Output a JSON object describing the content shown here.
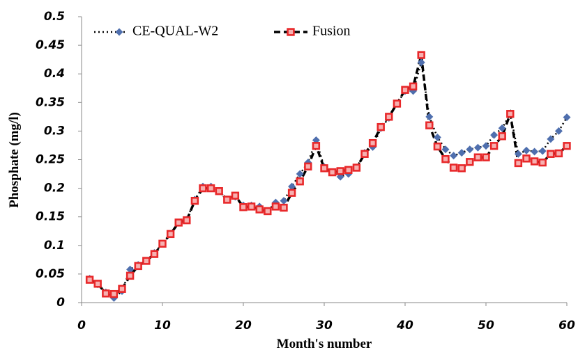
{
  "chart_data": {
    "type": "line",
    "xlabel": "Month's number",
    "ylabel": "Phosphate (mg/l)",
    "x": [
      1,
      2,
      3,
      4,
      5,
      6,
      7,
      8,
      9,
      10,
      11,
      12,
      13,
      14,
      15,
      16,
      17,
      18,
      19,
      20,
      21,
      22,
      23,
      24,
      25,
      26,
      27,
      28,
      29,
      30,
      31,
      32,
      33,
      34,
      35,
      36,
      37,
      38,
      39,
      40,
      41,
      42,
      43,
      44,
      45,
      46,
      47,
      48,
      49,
      50,
      51,
      52,
      53,
      54,
      55,
      56,
      57,
      58,
      59,
      60
    ],
    "series": [
      {
        "name": "CE-QUAL-W2",
        "color": "#4f6fae",
        "line_style": "dotted",
        "marker": "diamond",
        "values": [
          0.042,
          0.032,
          0.018,
          0.008,
          0.02,
          0.058,
          0.066,
          0.073,
          0.087,
          0.103,
          0.12,
          0.14,
          0.145,
          0.18,
          0.203,
          0.203,
          0.195,
          0.18,
          0.185,
          0.17,
          0.17,
          0.168,
          0.16,
          0.175,
          0.178,
          0.203,
          0.225,
          0.245,
          0.284,
          0.237,
          0.228,
          0.22,
          0.225,
          0.236,
          0.262,
          0.272,
          0.305,
          0.323,
          0.348,
          0.37,
          0.37,
          0.42,
          0.325,
          0.289,
          0.268,
          0.257,
          0.262,
          0.268,
          0.271,
          0.274,
          0.293,
          0.305,
          0.33,
          0.26,
          0.266,
          0.264,
          0.265,
          0.286,
          0.3,
          0.324
        ]
      },
      {
        "name": "Fusion",
        "color": "#e8282a",
        "line_style": "dashed",
        "marker": "square",
        "values": [
          0.04,
          0.033,
          0.016,
          0.015,
          0.024,
          0.047,
          0.064,
          0.073,
          0.085,
          0.103,
          0.12,
          0.14,
          0.144,
          0.178,
          0.2,
          0.2,
          0.195,
          0.18,
          0.187,
          0.167,
          0.168,
          0.163,
          0.16,
          0.168,
          0.166,
          0.192,
          0.212,
          0.238,
          0.274,
          0.235,
          0.228,
          0.23,
          0.232,
          0.236,
          0.26,
          0.279,
          0.307,
          0.325,
          0.348,
          0.372,
          0.378,
          0.433,
          0.31,
          0.273,
          0.251,
          0.236,
          0.235,
          0.246,
          0.254,
          0.254,
          0.274,
          0.291,
          0.33,
          0.244,
          0.252,
          0.247,
          0.245,
          0.26,
          0.261,
          0.274
        ]
      }
    ],
    "xlim": [
      0,
      60
    ],
    "xticks": [
      0,
      10,
      20,
      30,
      40,
      50,
      60
    ],
    "ylim": [
      0,
      0.5
    ],
    "yticks": [
      0,
      0.05,
      0.1,
      0.15,
      0.2,
      0.25,
      0.3,
      0.35,
      0.4,
      0.45,
      0.5
    ],
    "grid": false,
    "legend": "top-left"
  }
}
